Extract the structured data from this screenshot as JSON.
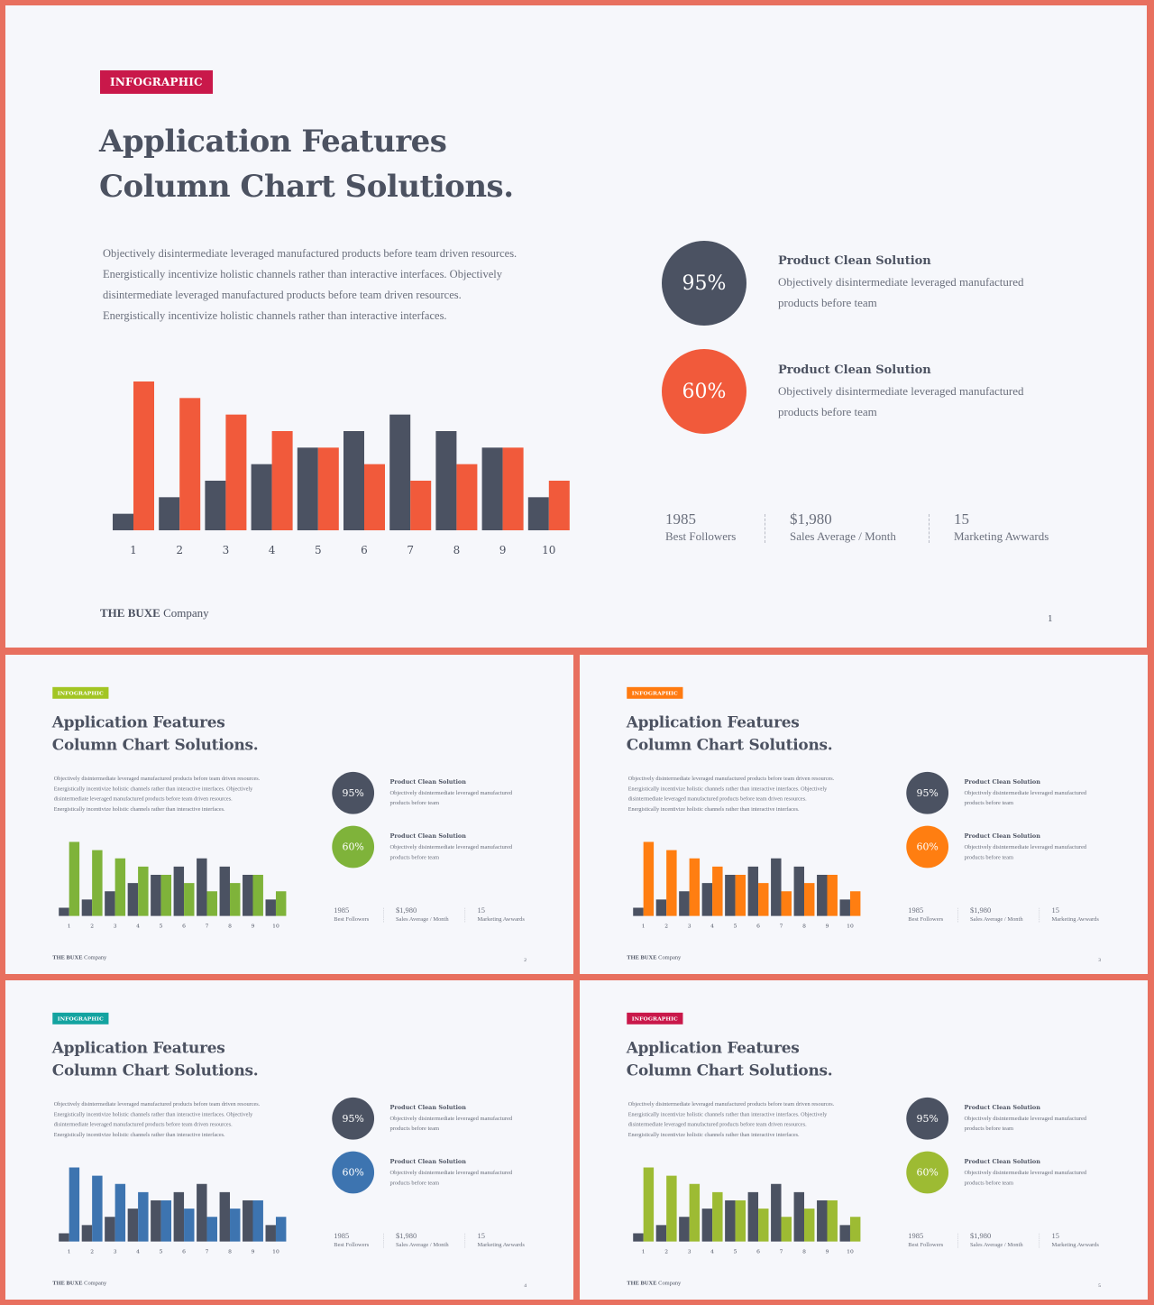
{
  "slides": [
    {
      "page": "1",
      "accent": "#f15a3b",
      "badge_color": "#c9184a"
    },
    {
      "page": "2",
      "accent": "#7fb33a",
      "badge_color": "#a2c523"
    },
    {
      "page": "3",
      "accent": "#ff7e11",
      "badge_color": "#ff7a10"
    },
    {
      "page": "4",
      "accent": "#3d74b0",
      "badge_color": "#13a3a0"
    },
    {
      "page": "5",
      "accent": "#9dbb33",
      "badge_color": "#c9184a"
    }
  ],
  "content": {
    "badge": "INFOGRAPHIC",
    "title_line1": "Application Features",
    "title_line2": "Column Chart Solutions.",
    "body_lines": [
      "Objectively disintermediate leveraged manufactured products before team  driven resources.",
      "Energistically incentivize holistic channels rather than interactive interfaces. Objectively",
      "disintermediate leveraged manufactured products before team driven resources.",
      "Energistically incentivize holistic channels rather than interactive interfaces."
    ],
    "circle1_value": "95%",
    "circle2_value": "60%",
    "feature1": {
      "title": "Product Clean Solution",
      "line1": "Objectively disintermediate leveraged manufactured",
      "line2": "products before team"
    },
    "feature2": {
      "title": "Product Clean Solution",
      "line1": "Objectively disintermediate leveraged manufactured",
      "line2": "products before team"
    },
    "stats": [
      {
        "value": "1985",
        "label": "Best Followers"
      },
      {
        "value": "$1,980",
        "label": "Sales Average / Month"
      },
      {
        "value": "15",
        "label": "Marketing Awwards"
      }
    ],
    "brand_bold": "THE BUXE",
    "brand_rest": " Company"
  },
  "chart_data": {
    "type": "bar",
    "categories": [
      "1",
      "2",
      "3",
      "4",
      "5",
      "6",
      "7",
      "8",
      "9",
      "10"
    ],
    "series": [
      {
        "color": "#4b5262",
        "values": [
          1,
          2,
          3,
          4,
          5,
          6,
          7,
          6,
          5,
          2
        ]
      },
      {
        "color": "accent",
        "values": [
          9,
          8,
          7,
          6,
          5,
          4,
          3,
          4,
          5,
          3
        ]
      }
    ],
    "ylim": [
      0,
      9
    ],
    "grid": false,
    "legend": "none"
  }
}
